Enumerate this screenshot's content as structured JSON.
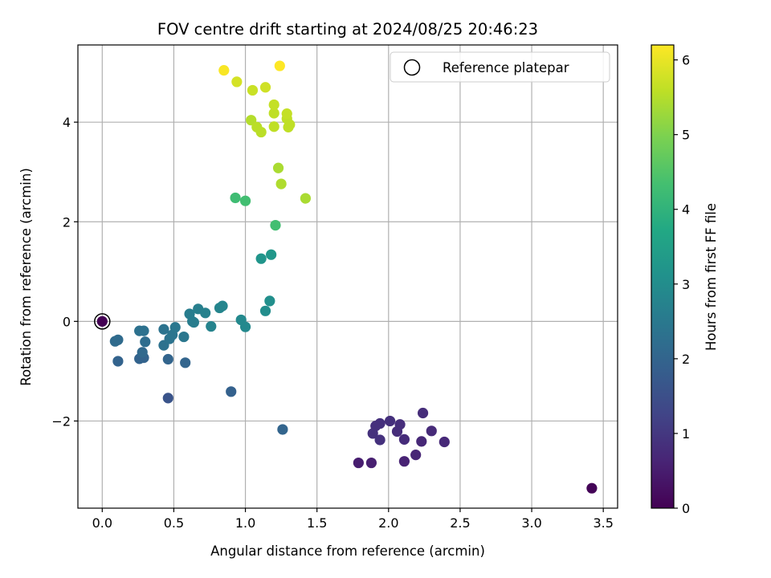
{
  "chart_data": {
    "type": "scatter",
    "title": "FOV centre drift starting at 2024/08/25 20:46:23",
    "xlabel": "Angular distance from reference (arcmin)",
    "ylabel": "Rotation from reference (arcmin)",
    "xlim": [
      -0.17,
      3.6
    ],
    "ylim": [
      -3.75,
      5.55
    ],
    "xticks": [
      0.0,
      0.5,
      1.0,
      1.5,
      2.0,
      2.5,
      3.0,
      3.5
    ],
    "xtick_labels": [
      "0.0",
      "0.5",
      "1.0",
      "1.5",
      "2.0",
      "2.5",
      "3.0",
      "3.5"
    ],
    "yticks": [
      -2,
      0,
      2,
      4
    ],
    "ytick_labels": [
      "−2",
      "0",
      "2",
      "4"
    ],
    "grid": true,
    "legend": {
      "position": "top-right",
      "label": "Reference platepar"
    },
    "colorbar": {
      "label": "Hours from first FF file",
      "colormap": "viridis",
      "range": [
        0,
        6.2
      ],
      "ticks": [
        0,
        1,
        2,
        3,
        4,
        5,
        6
      ],
      "tick_labels": [
        "0",
        "1",
        "2",
        "3",
        "4",
        "5",
        "6"
      ]
    },
    "reference_point": {
      "x": 0.0,
      "y": 0.0
    },
    "series": [
      {
        "points": [
          {
            "x": 0.0,
            "y": 0.0,
            "t": 0.0
          },
          {
            "x": 3.42,
            "y": -3.35,
            "t": 0.05
          },
          {
            "x": 1.79,
            "y": -2.84,
            "t": 0.5
          },
          {
            "x": 1.88,
            "y": -2.84,
            "t": 0.55
          },
          {
            "x": 2.11,
            "y": -2.81,
            "t": 0.6
          },
          {
            "x": 2.19,
            "y": -2.68,
            "t": 0.65
          },
          {
            "x": 2.23,
            "y": -2.41,
            "t": 0.7
          },
          {
            "x": 2.39,
            "y": -2.42,
            "t": 0.72
          },
          {
            "x": 2.3,
            "y": -2.2,
            "t": 0.75
          },
          {
            "x": 2.24,
            "y": -1.84,
            "t": 0.8
          },
          {
            "x": 2.11,
            "y": -2.37,
            "t": 0.78
          },
          {
            "x": 2.06,
            "y": -2.21,
            "t": 0.8
          },
          {
            "x": 2.08,
            "y": -2.07,
            "t": 0.82
          },
          {
            "x": 2.01,
            "y": -2.0,
            "t": 0.85
          },
          {
            "x": 1.94,
            "y": -2.05,
            "t": 0.85
          },
          {
            "x": 1.91,
            "y": -2.1,
            "t": 0.86
          },
          {
            "x": 1.89,
            "y": -2.25,
            "t": 0.87
          },
          {
            "x": 1.94,
            "y": -2.38,
            "t": 0.88
          },
          {
            "x": 0.46,
            "y": -1.54,
            "t": 1.6
          },
          {
            "x": 0.9,
            "y": -1.41,
            "t": 1.9
          },
          {
            "x": 1.26,
            "y": -2.17,
            "t": 2.0
          },
          {
            "x": 0.11,
            "y": -0.8,
            "t": 1.95
          },
          {
            "x": 0.26,
            "y": -0.75,
            "t": 1.95
          },
          {
            "x": 0.29,
            "y": -0.73,
            "t": 1.95
          },
          {
            "x": 0.46,
            "y": -0.76,
            "t": 2.0
          },
          {
            "x": 0.58,
            "y": -0.83,
            "t": 2.0
          },
          {
            "x": 0.28,
            "y": -0.62,
            "t": 2.1
          },
          {
            "x": 0.09,
            "y": -0.4,
            "t": 2.15
          },
          {
            "x": 0.11,
            "y": -0.37,
            "t": 2.15
          },
          {
            "x": 0.3,
            "y": -0.41,
            "t": 2.2
          },
          {
            "x": 0.26,
            "y": -0.19,
            "t": 2.3
          },
          {
            "x": 0.29,
            "y": -0.19,
            "t": 2.3
          },
          {
            "x": 0.43,
            "y": -0.48,
            "t": 2.3
          },
          {
            "x": 0.43,
            "y": -0.16,
            "t": 2.35
          },
          {
            "x": 0.47,
            "y": -0.35,
            "t": 2.35
          },
          {
            "x": 0.49,
            "y": -0.27,
            "t": 2.4
          },
          {
            "x": 0.51,
            "y": -0.12,
            "t": 2.45
          },
          {
            "x": 0.57,
            "y": -0.31,
            "t": 2.45
          },
          {
            "x": 0.61,
            "y": 0.15,
            "t": 2.6
          },
          {
            "x": 0.63,
            "y": 0.0,
            "t": 2.6
          },
          {
            "x": 0.64,
            "y": -0.02,
            "t": 2.6
          },
          {
            "x": 0.67,
            "y": 0.25,
            "t": 2.65
          },
          {
            "x": 0.72,
            "y": 0.17,
            "t": 2.7
          },
          {
            "x": 0.76,
            "y": -0.1,
            "t": 2.75
          },
          {
            "x": 0.82,
            "y": 0.27,
            "t": 2.8
          },
          {
            "x": 0.84,
            "y": 0.31,
            "t": 2.8
          },
          {
            "x": 0.97,
            "y": 0.03,
            "t": 2.9
          },
          {
            "x": 1.0,
            "y": -0.11,
            "t": 2.9
          },
          {
            "x": 1.14,
            "y": 0.21,
            "t": 3.0
          },
          {
            "x": 1.17,
            "y": 0.41,
            "t": 3.05
          },
          {
            "x": 1.11,
            "y": 1.26,
            "t": 3.2
          },
          {
            "x": 1.18,
            "y": 1.34,
            "t": 3.25
          },
          {
            "x": 1.21,
            "y": 1.93,
            "t": 4.3
          },
          {
            "x": 0.93,
            "y": 2.48,
            "t": 4.25
          },
          {
            "x": 1.0,
            "y": 2.42,
            "t": 4.3
          },
          {
            "x": 1.42,
            "y": 2.47,
            "t": 5.4
          },
          {
            "x": 1.23,
            "y": 3.08,
            "t": 5.4
          },
          {
            "x": 1.25,
            "y": 2.76,
            "t": 5.45
          },
          {
            "x": 1.04,
            "y": 4.04,
            "t": 5.5
          },
          {
            "x": 1.08,
            "y": 3.9,
            "t": 5.55
          },
          {
            "x": 1.11,
            "y": 3.8,
            "t": 5.55
          },
          {
            "x": 1.2,
            "y": 3.91,
            "t": 5.6
          },
          {
            "x": 1.3,
            "y": 3.9,
            "t": 5.6
          },
          {
            "x": 1.31,
            "y": 3.95,
            "t": 5.6
          },
          {
            "x": 1.29,
            "y": 4.07,
            "t": 5.6
          },
          {
            "x": 1.2,
            "y": 4.18,
            "t": 5.6
          },
          {
            "x": 1.29,
            "y": 4.17,
            "t": 5.65
          },
          {
            "x": 1.2,
            "y": 4.35,
            "t": 5.65
          },
          {
            "x": 1.05,
            "y": 4.64,
            "t": 5.7
          },
          {
            "x": 1.14,
            "y": 4.7,
            "t": 5.75
          },
          {
            "x": 0.94,
            "y": 4.81,
            "t": 5.8
          },
          {
            "x": 0.85,
            "y": 5.04,
            "t": 6.15
          },
          {
            "x": 1.24,
            "y": 5.13,
            "t": 6.2
          }
        ]
      }
    ]
  }
}
